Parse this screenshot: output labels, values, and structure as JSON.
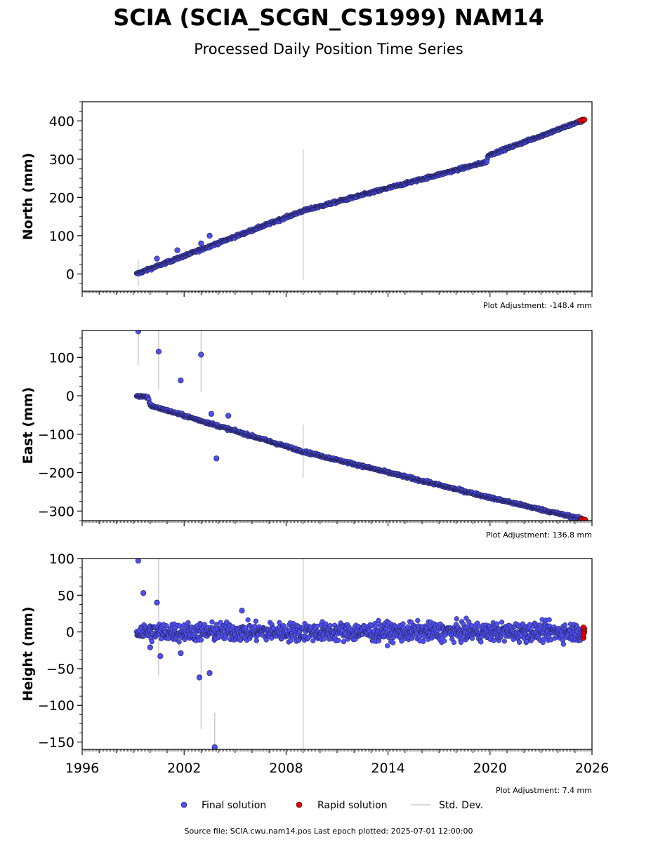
{
  "header": {
    "title": "SCIA (SCIA_SCGN_CS1999) NAM14",
    "subtitle": "Processed Daily Position Time Series"
  },
  "colors": {
    "final": "#4f4ff0",
    "final_edge": "#1a1a40",
    "rapid": "#e00000",
    "stddev": "#cccccc"
  },
  "legend": {
    "final": "Final solution",
    "rapid": "Rapid solution",
    "stddev": "Std. Dev."
  },
  "source_line": "Source file: SCIA.cwu.nam14.pos  Last epoch plotted: 2025-07-01 12:00:00",
  "chart_data": [
    {
      "type": "scatter",
      "ylabel": "North (mm)",
      "adjustment": "Plot Adjustment: -148.4 mm",
      "xlim": [
        1996,
        2026
      ],
      "ylim": [
        -45,
        450
      ],
      "yticks": [
        0,
        100,
        200,
        300,
        400
      ],
      "trend": [
        [
          1999.2,
          0
        ],
        [
          2009,
          165
        ],
        [
          2019.8,
          293
        ],
        [
          2019.9,
          310
        ],
        [
          2025.5,
          402
        ]
      ],
      "noise": 2.5,
      "outliers": [
        [
          2003.5,
          100
        ],
        [
          2001.6,
          62
        ],
        [
          2003.0,
          80
        ],
        [
          2000.4,
          40
        ]
      ],
      "errorbars": [
        [
          2009.0,
          -15,
          325
        ],
        [
          1999.3,
          -30,
          35
        ]
      ],
      "rapid": [
        [
          2025.3,
          401
        ],
        [
          2025.45,
          402
        ],
        [
          2025.55,
          403
        ]
      ]
    },
    {
      "type": "scatter",
      "ylabel": "East (mm)",
      "adjustment": "Plot Adjustment: 136.8 mm",
      "xlim": [
        1996,
        2026
      ],
      "ylim": [
        -325,
        170
      ],
      "yticks": [
        -300,
        -200,
        -100,
        0,
        100
      ],
      "trend": [
        [
          1999.2,
          0
        ],
        [
          1999.9,
          -5
        ],
        [
          2000.0,
          -25
        ],
        [
          2009,
          -145
        ],
        [
          2020,
          -265
        ],
        [
          2025.5,
          -322
        ]
      ],
      "noise": 2.5,
      "outliers": [
        [
          1999.3,
          168
        ],
        [
          2000.5,
          115
        ],
        [
          2001.8,
          40
        ],
        [
          2003.0,
          107
        ],
        [
          2003.6,
          -47
        ],
        [
          2004.6,
          -52
        ],
        [
          2003.9,
          -163
        ]
      ],
      "errorbars": [
        [
          2009.0,
          -213,
          -75
        ],
        [
          1999.3,
          80,
          170
        ],
        [
          2000.5,
          18,
          170
        ],
        [
          2003.0,
          10,
          170
        ]
      ],
      "rapid": [
        [
          2025.4,
          -321
        ],
        [
          2025.5,
          -322
        ],
        [
          2025.6,
          -323
        ]
      ]
    },
    {
      "type": "scatter",
      "ylabel": "Height (mm)",
      "adjustment": "Plot Adjustment: 7.4 mm",
      "xlim": [
        1996,
        2026
      ],
      "ylim": [
        -160,
        100
      ],
      "yticks": [
        -150,
        -100,
        -50,
        0,
        50,
        100
      ],
      "xticks": [
        1996,
        2002,
        2008,
        2014,
        2020,
        2026
      ],
      "trend": [
        [
          1999.2,
          0
        ],
        [
          2025.5,
          0
        ]
      ],
      "noise": 9,
      "outliers": [
        [
          1999.3,
          97
        ],
        [
          1999.6,
          53
        ],
        [
          2000.4,
          40
        ],
        [
          2000.6,
          -33
        ],
        [
          2002.9,
          -62
        ],
        [
          2003.5,
          -56
        ],
        [
          2003.8,
          -157
        ],
        [
          2005.4,
          29
        ],
        [
          2001.8,
          -29
        ],
        [
          2000.0,
          -21
        ]
      ],
      "errorbars": [
        [
          2009.0,
          -160,
          100
        ],
        [
          2000.5,
          -60,
          100
        ],
        [
          2003.0,
          -132,
          10
        ],
        [
          2003.8,
          -160,
          -110
        ]
      ],
      "rapid": [
        [
          2025.5,
          -8
        ],
        [
          2025.5,
          -4
        ],
        [
          2025.55,
          0
        ],
        [
          2025.55,
          4
        ],
        [
          2025.5,
          6
        ]
      ]
    }
  ]
}
